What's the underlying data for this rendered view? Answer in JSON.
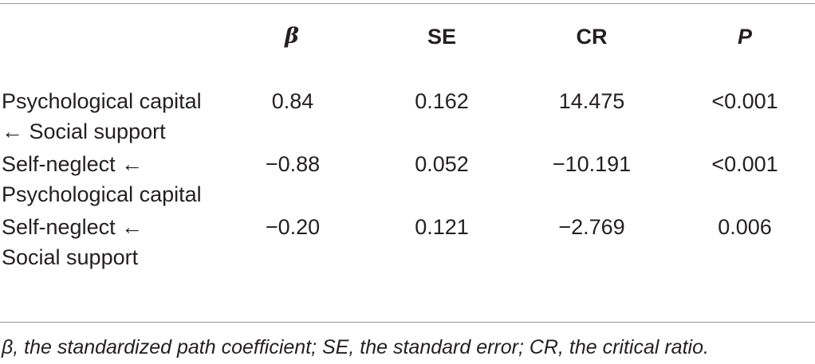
{
  "table": {
    "columns": [
      {
        "label": "β"
      },
      {
        "label": "SE"
      },
      {
        "label": "CR"
      },
      {
        "label": "P"
      }
    ],
    "rows": [
      {
        "label_line1": "Psychological capital",
        "label_line2": "← Social support",
        "beta": "0.84",
        "se": "0.162",
        "cr": "14.475",
        "p": "<0.001"
      },
      {
        "label_line1": "Self-neglect ←",
        "label_line2": "Psychological capital",
        "beta": "−0.88",
        "se": "0.052",
        "cr": "−10.191",
        "p": "<0.001"
      },
      {
        "label_line1": "Self-neglect ←",
        "label_line2": "Social support",
        "beta": "−0.20",
        "se": "0.121",
        "cr": "−2.769",
        "p": "0.006"
      }
    ]
  },
  "footnote": "β, the standardized path coefficient; SE, the standard error; CR, the critical ratio."
}
